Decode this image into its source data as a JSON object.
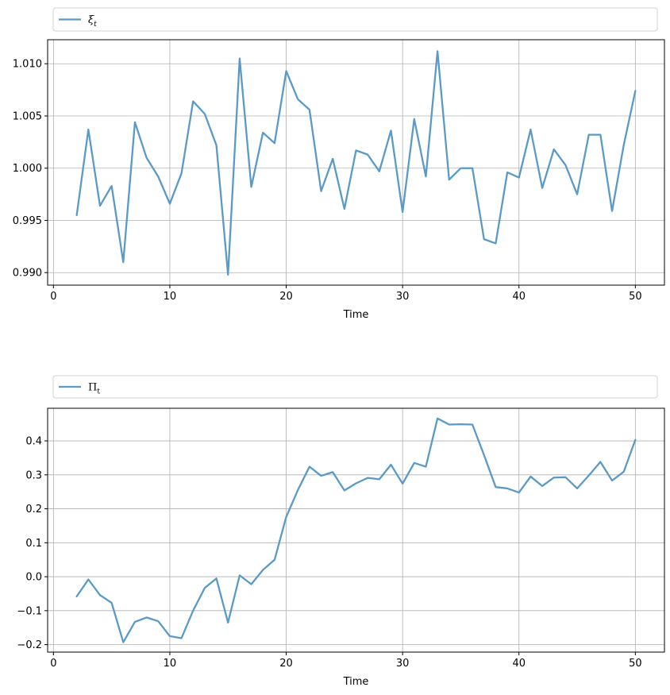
{
  "chart_data": [
    {
      "type": "line",
      "legend_label": "ξ",
      "legend_subscript": "t",
      "legend_placement": "top, above plot, spanning width",
      "title": "",
      "xlabel": "Time",
      "ylabel": "",
      "xlim": [
        -0.5,
        52.5
      ],
      "ylim": [
        0.9888,
        1.0123
      ],
      "xticks": [
        0,
        10,
        20,
        30,
        40,
        50
      ],
      "yticks": [
        0.99,
        0.995,
        1.0,
        1.005,
        1.01
      ],
      "ytick_labels": [
        "0.990",
        "0.995",
        "1.000",
        "1.005",
        "1.010"
      ],
      "grid": true,
      "color": "#5b9ac6",
      "series": [
        {
          "x": [
            2,
            3,
            4,
            5,
            6,
            7,
            8,
            9,
            10,
            11,
            12,
            13,
            14,
            15,
            16,
            17,
            18,
            19,
            20,
            21,
            22,
            23,
            24,
            25,
            26,
            27,
            28,
            29,
            30,
            31,
            32,
            33,
            34,
            35,
            36,
            37,
            38,
            39,
            40,
            41,
            42,
            43,
            44,
            45,
            46,
            47,
            48,
            49,
            50
          ],
          "values": [
            0.9955,
            1.0037,
            0.9964,
            0.9983,
            0.991,
            1.0044,
            1.001,
            0.9992,
            0.9966,
            0.9995,
            1.0064,
            1.0052,
            1.0022,
            0.9898,
            1.0105,
            0.9982,
            1.0034,
            1.0024,
            1.0093,
            1.0066,
            1.0056,
            0.9978,
            1.0009,
            0.9961,
            1.0017,
            1.0013,
            0.9997,
            1.0036,
            0.9958,
            1.0047,
            0.9992,
            1.0112,
            0.9989,
            1.0,
            1.0,
            0.9932,
            0.9928,
            0.9996,
            0.9991,
            1.0037,
            0.9981,
            1.0018,
            1.0003,
            0.9975,
            1.0032,
            1.0032,
            0.9959,
            1.0022,
            1.0074
          ]
        }
      ]
    },
    {
      "type": "line",
      "legend_label": "Π",
      "legend_subscript": "t",
      "legend_placement": "top, above plot, spanning width",
      "title": "",
      "xlabel": "Time",
      "ylabel": "",
      "xlim": [
        -0.5,
        52.5
      ],
      "ylim": [
        -0.222,
        0.496
      ],
      "xticks": [
        0,
        10,
        20,
        30,
        40,
        50
      ],
      "yticks": [
        -0.2,
        -0.1,
        0.0,
        0.1,
        0.2,
        0.3,
        0.4
      ],
      "ytick_labels": [
        "−0.2",
        "−0.1",
        "0.0",
        "0.1",
        "0.2",
        "0.3",
        "0.4"
      ],
      "grid": true,
      "color": "#5b9ac6",
      "series": [
        {
          "x": [
            2,
            3,
            4,
            5,
            6,
            7,
            8,
            9,
            10,
            11,
            12,
            13,
            14,
            15,
            16,
            17,
            18,
            19,
            20,
            21,
            22,
            23,
            24,
            25,
            26,
            27,
            28,
            29,
            30,
            31,
            32,
            33,
            34,
            35,
            36,
            37,
            38,
            39,
            40,
            41,
            42,
            43,
            44,
            45,
            46,
            47,
            48,
            49,
            50
          ],
          "values": [
            -0.058,
            -0.008,
            -0.054,
            -0.077,
            -0.193,
            -0.133,
            -0.12,
            -0.131,
            -0.175,
            -0.181,
            -0.1,
            -0.033,
            -0.005,
            -0.135,
            0.004,
            -0.022,
            0.02,
            0.05,
            0.176,
            0.255,
            0.324,
            0.297,
            0.308,
            0.254,
            0.275,
            0.291,
            0.287,
            0.33,
            0.274,
            0.335,
            0.324,
            0.466,
            0.448,
            0.449,
            0.448,
            0.358,
            0.264,
            0.26,
            0.248,
            0.295,
            0.267,
            0.292,
            0.293,
            0.26,
            0.298,
            0.338,
            0.283,
            0.309,
            0.403
          ]
        }
      ]
    }
  ]
}
